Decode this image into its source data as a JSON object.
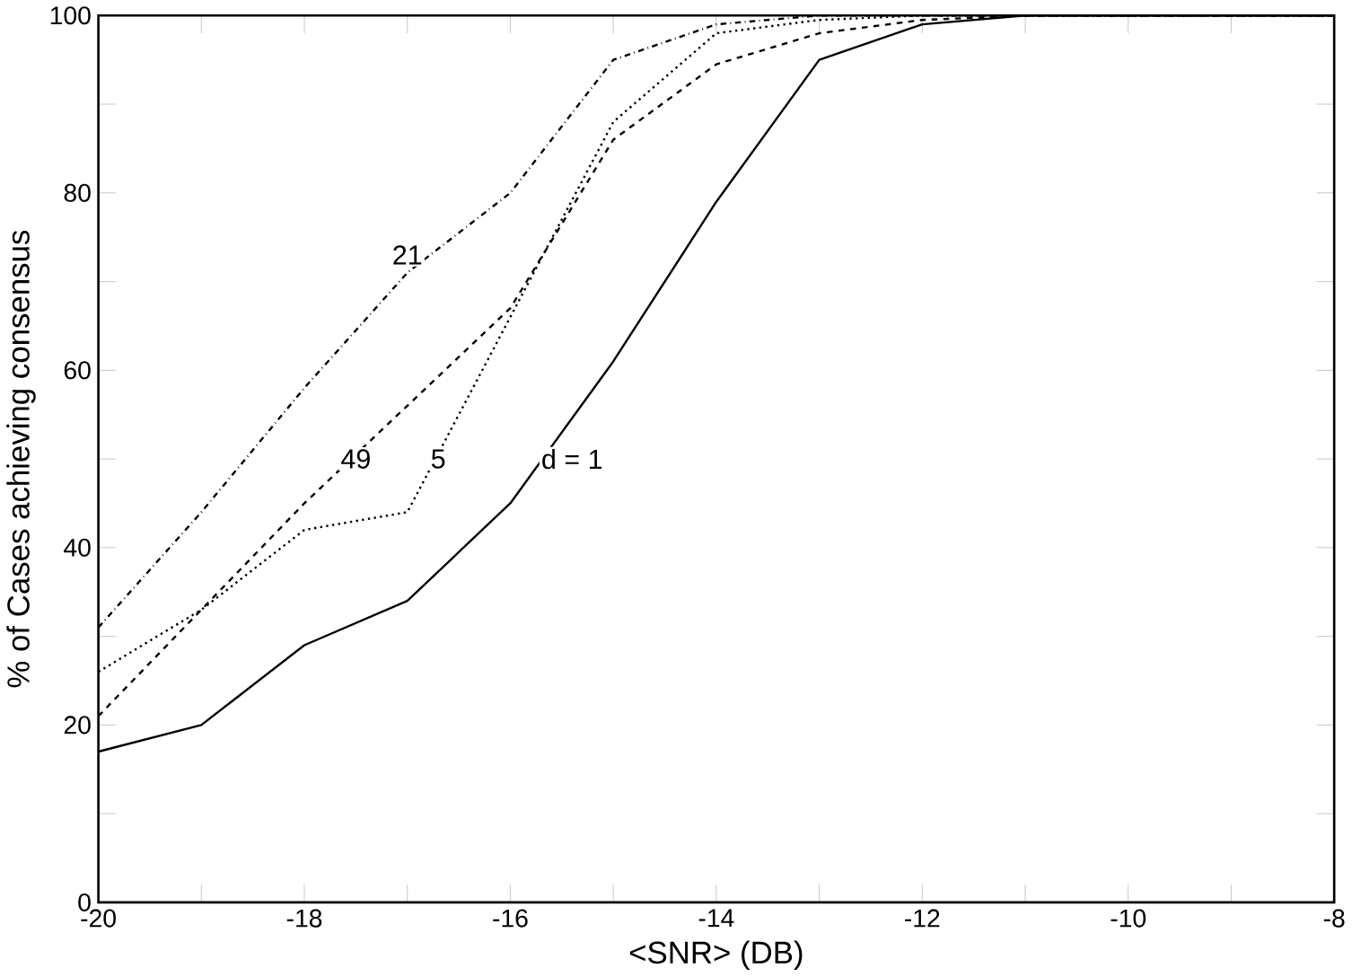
{
  "chart_data": {
    "type": "line",
    "xlabel": "<SNR> (DB)",
    "ylabel": "% of Cases achieving consensus",
    "x": [
      -20,
      -19,
      -18,
      -17,
      -16,
      -15,
      -14,
      -13,
      -12,
      -11,
      -10,
      -9,
      -8
    ],
    "series": [
      {
        "color": "#000000",
        "line_style": "solid",
        "values": [
          17,
          20,
          29,
          34,
          45,
          61,
          79,
          95,
          99,
          100,
          100,
          100,
          100
        ]
      },
      {
        "color": "#000000",
        "line_style": "dotted",
        "values": [
          26,
          33,
          42,
          44,
          66,
          88,
          98,
          99.5,
          100,
          100,
          100,
          100,
          100
        ]
      },
      {
        "color": "#000000",
        "line_style": "dashed",
        "values": [
          21,
          33,
          45,
          56,
          67,
          86,
          94.5,
          98,
          99.5,
          100,
          100,
          100,
          100
        ]
      },
      {
        "color": "#000000",
        "line_style": "dashdot",
        "values": [
          31,
          44,
          58,
          71,
          80,
          95,
          99,
          100,
          100,
          100,
          100,
          100,
          100
        ]
      }
    ],
    "annotations": [
      {
        "text": "d = 1",
        "x": -15.4,
        "y": 50
      },
      {
        "text": "5",
        "x": -16.7,
        "y": 50
      },
      {
        "text": "49",
        "x": -17.5,
        "y": 50
      },
      {
        "text": "21",
        "x": -17,
        "y": 73
      }
    ],
    "xlim": [
      -20,
      -8
    ],
    "ylim": [
      0,
      100
    ],
    "xticks": [
      -20,
      {
        "value": -19,
        "label": null
      },
      -18,
      {
        "value": -17,
        "label": null
      },
      -16,
      {
        "value": -15,
        "label": null
      },
      -14,
      {
        "value": -13,
        "label": null
      },
      -12,
      {
        "value": -11,
        "label": null
      },
      -10,
      {
        "value": -9,
        "label": null
      },
      -8
    ],
    "yticks": [
      0,
      {
        "value": 10,
        "label": null
      },
      20,
      {
        "value": 30,
        "label": null
      },
      40,
      {
        "value": 50,
        "label": null
      },
      60,
      {
        "value": 70,
        "label": null
      },
      80,
      {
        "value": 90,
        "label": null
      },
      100
    ],
    "grid": false,
    "marker": "none"
  }
}
